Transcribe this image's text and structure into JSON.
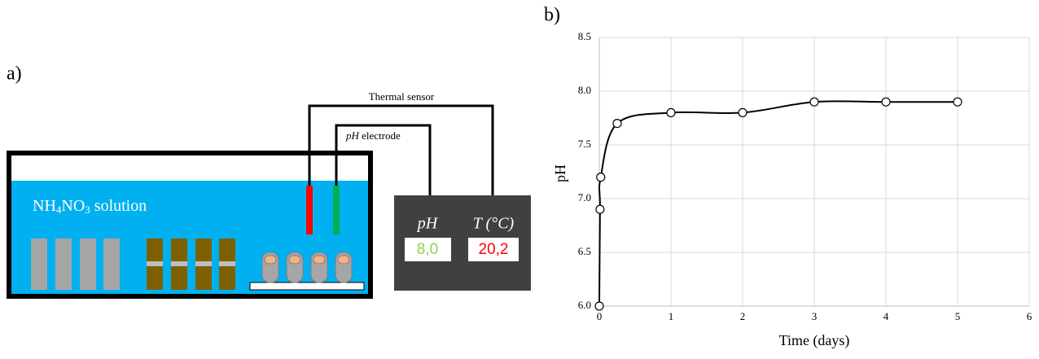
{
  "panel_a": {
    "label": "a)",
    "solution": [
      "NH",
      "4",
      "NO",
      "3",
      " solution"
    ],
    "thermal_sensor": "Thermal sensor",
    "ph_electrode": [
      "pH",
      " electrode"
    ],
    "meter": {
      "ph_header": "pH",
      "t_header": "T (°C)",
      "ph_value": "8,0",
      "t_value": "20,2"
    }
  },
  "panel_b": {
    "label": "b)"
  },
  "chart_data": {
    "type": "line",
    "x_label": "Time (days)",
    "y_label": "pH",
    "x": [
      0,
      0.01,
      0.02,
      0.25,
      1,
      2,
      3,
      4,
      5
    ],
    "series": [
      {
        "color": "#000000",
        "values": [
          6.0,
          6.9,
          7.2,
          7.7,
          7.8,
          7.8,
          7.9,
          7.9,
          7.9
        ]
      }
    ],
    "xlim": [
      0,
      6
    ],
    "xticks": [
      0,
      1,
      2,
      3,
      4,
      5,
      6
    ],
    "ylim": [
      6,
      8.5
    ],
    "yticks": [
      {
        "value": 6,
        "label": "6.0"
      },
      {
        "value": 6.5,
        "label": "6.5"
      },
      {
        "value": 7,
        "label": "7.0"
      },
      {
        "value": 7.5,
        "label": "7.5"
      },
      {
        "value": 8,
        "label": "8.0"
      },
      {
        "value": 8.5,
        "label": "8.5"
      }
    ],
    "grid": true
  }
}
